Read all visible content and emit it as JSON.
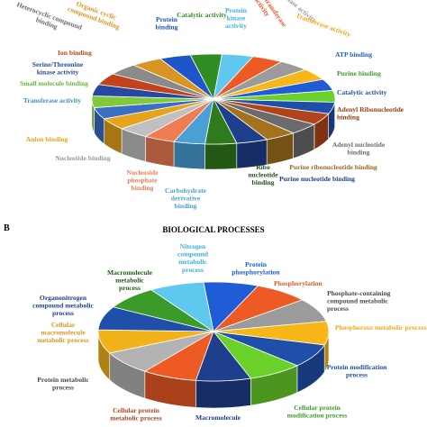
{
  "chart_data": [
    {
      "type": "pie",
      "panel_label": "",
      "title": "",
      "legend": "none",
      "categories": [
        "Protein kinase activity",
        "Phosphotransferase activity",
        "Kinase activity",
        "Transferase activity",
        "ATP binding",
        "Purine binding",
        "Catalytic activity",
        "Adenyl Ribonucleotide binding",
        "Adenyl nucleotide binding",
        "Purine ribonucleotide binding",
        "Purine nucleotide binding",
        "Ribo nucleotide binding",
        "Carbohydrate derivative binding",
        "Nucleoside phosphate binding",
        "Nucleotide binding",
        "Anion binding",
        "Transferase activity",
        "Small molecule binding",
        "Serine/Threonine kinase activity",
        "Ion binding",
        "Heterocyclic compound binding",
        "Organic cyclic compound binding",
        "Protein binding",
        "Catalytic activity"
      ],
      "values": [
        4.2,
        4.2,
        4.2,
        4.2,
        4.2,
        4.2,
        4.2,
        4.2,
        4.2,
        4.2,
        4.2,
        4.2,
        4.2,
        4.2,
        4.2,
        4.2,
        4.2,
        4.2,
        4.2,
        4.2,
        4.2,
        4.2,
        4.2,
        4.2
      ],
      "colors": [
        "#5ec8ee",
        "#ee5a24",
        "#9b9b9b",
        "#f7b718",
        "#1f5cd6",
        "#6ad12b",
        "#1f4fa8",
        "#b2441c",
        "#6b6b6b",
        "#a4711f",
        "#1e3f8c",
        "#2f7a1c",
        "#4a9fd4",
        "#ef7d52",
        "#c0c0c0",
        "#e6a41c",
        "#3a6ec4",
        "#7fc93a",
        "#2548a0",
        "#c2421c",
        "#8a8a8a",
        "#d99522",
        "#1e56c8",
        "#2f8d24"
      ],
      "label_colors": [
        "#3ab0e0",
        "#e2562a",
        "#9a9a9a",
        "#f2a81d",
        "#1f5cd6",
        "#3f9b2a",
        "#1f4fa8",
        "#9c3a1a",
        "#6b6b6b",
        "#9a6a1e",
        "#1e3f8c",
        "#244f16",
        "#4a9fd4",
        "#ef7d52",
        "#9a9a9a",
        "#e6a41c",
        "#3a8ec8",
        "#6cb83a",
        "#2548a0",
        "#c2421c",
        "#6b6b6b",
        "#d99522",
        "#1e56c8",
        "#2f8d24"
      ]
    },
    {
      "type": "pie",
      "panel_label": "B",
      "title": "BIOLOGICAL PROCESSES",
      "legend": "none",
      "categories": [
        "Protein phosphorylation",
        "Phosphorylation",
        "Phosphate-containing compound metabolic process",
        "Phosphorous metabolic process",
        "Protein modification process",
        "Cellular protein modification process",
        "Macromolecule",
        "Cellular protein metabolic process",
        "Protein metabolic process",
        "Cellular macromolecule metabolic process",
        "Organonitrogen compound metabolic process",
        "Macromolecule metabolic process",
        "Nitrogen compound metabolic process"
      ],
      "values": [
        7.7,
        7.7,
        7.7,
        7.7,
        7.7,
        7.7,
        7.7,
        7.7,
        7.7,
        7.7,
        7.7,
        7.7,
        7.7
      ],
      "colors": [
        "#1f5cd6",
        "#ee5a24",
        "#9b9b9b",
        "#f7b718",
        "#1f4fa8",
        "#6ad12b",
        "#1e3f8c",
        "#ee5a24",
        "#b3b3b3",
        "#f2b31a",
        "#1f4fa8",
        "#3a9b2a",
        "#5ec8ee"
      ],
      "label_colors": [
        "#1f5cd6",
        "#e2562a",
        "#4a4a4a",
        "#f2a81d",
        "#1f4fa8",
        "#3f9b2a",
        "#1e3f8c",
        "#b2441c",
        "#4a4a4a",
        "#d99522",
        "#1e3f8c",
        "#1f5a14",
        "#3ab0e0"
      ]
    }
  ]
}
